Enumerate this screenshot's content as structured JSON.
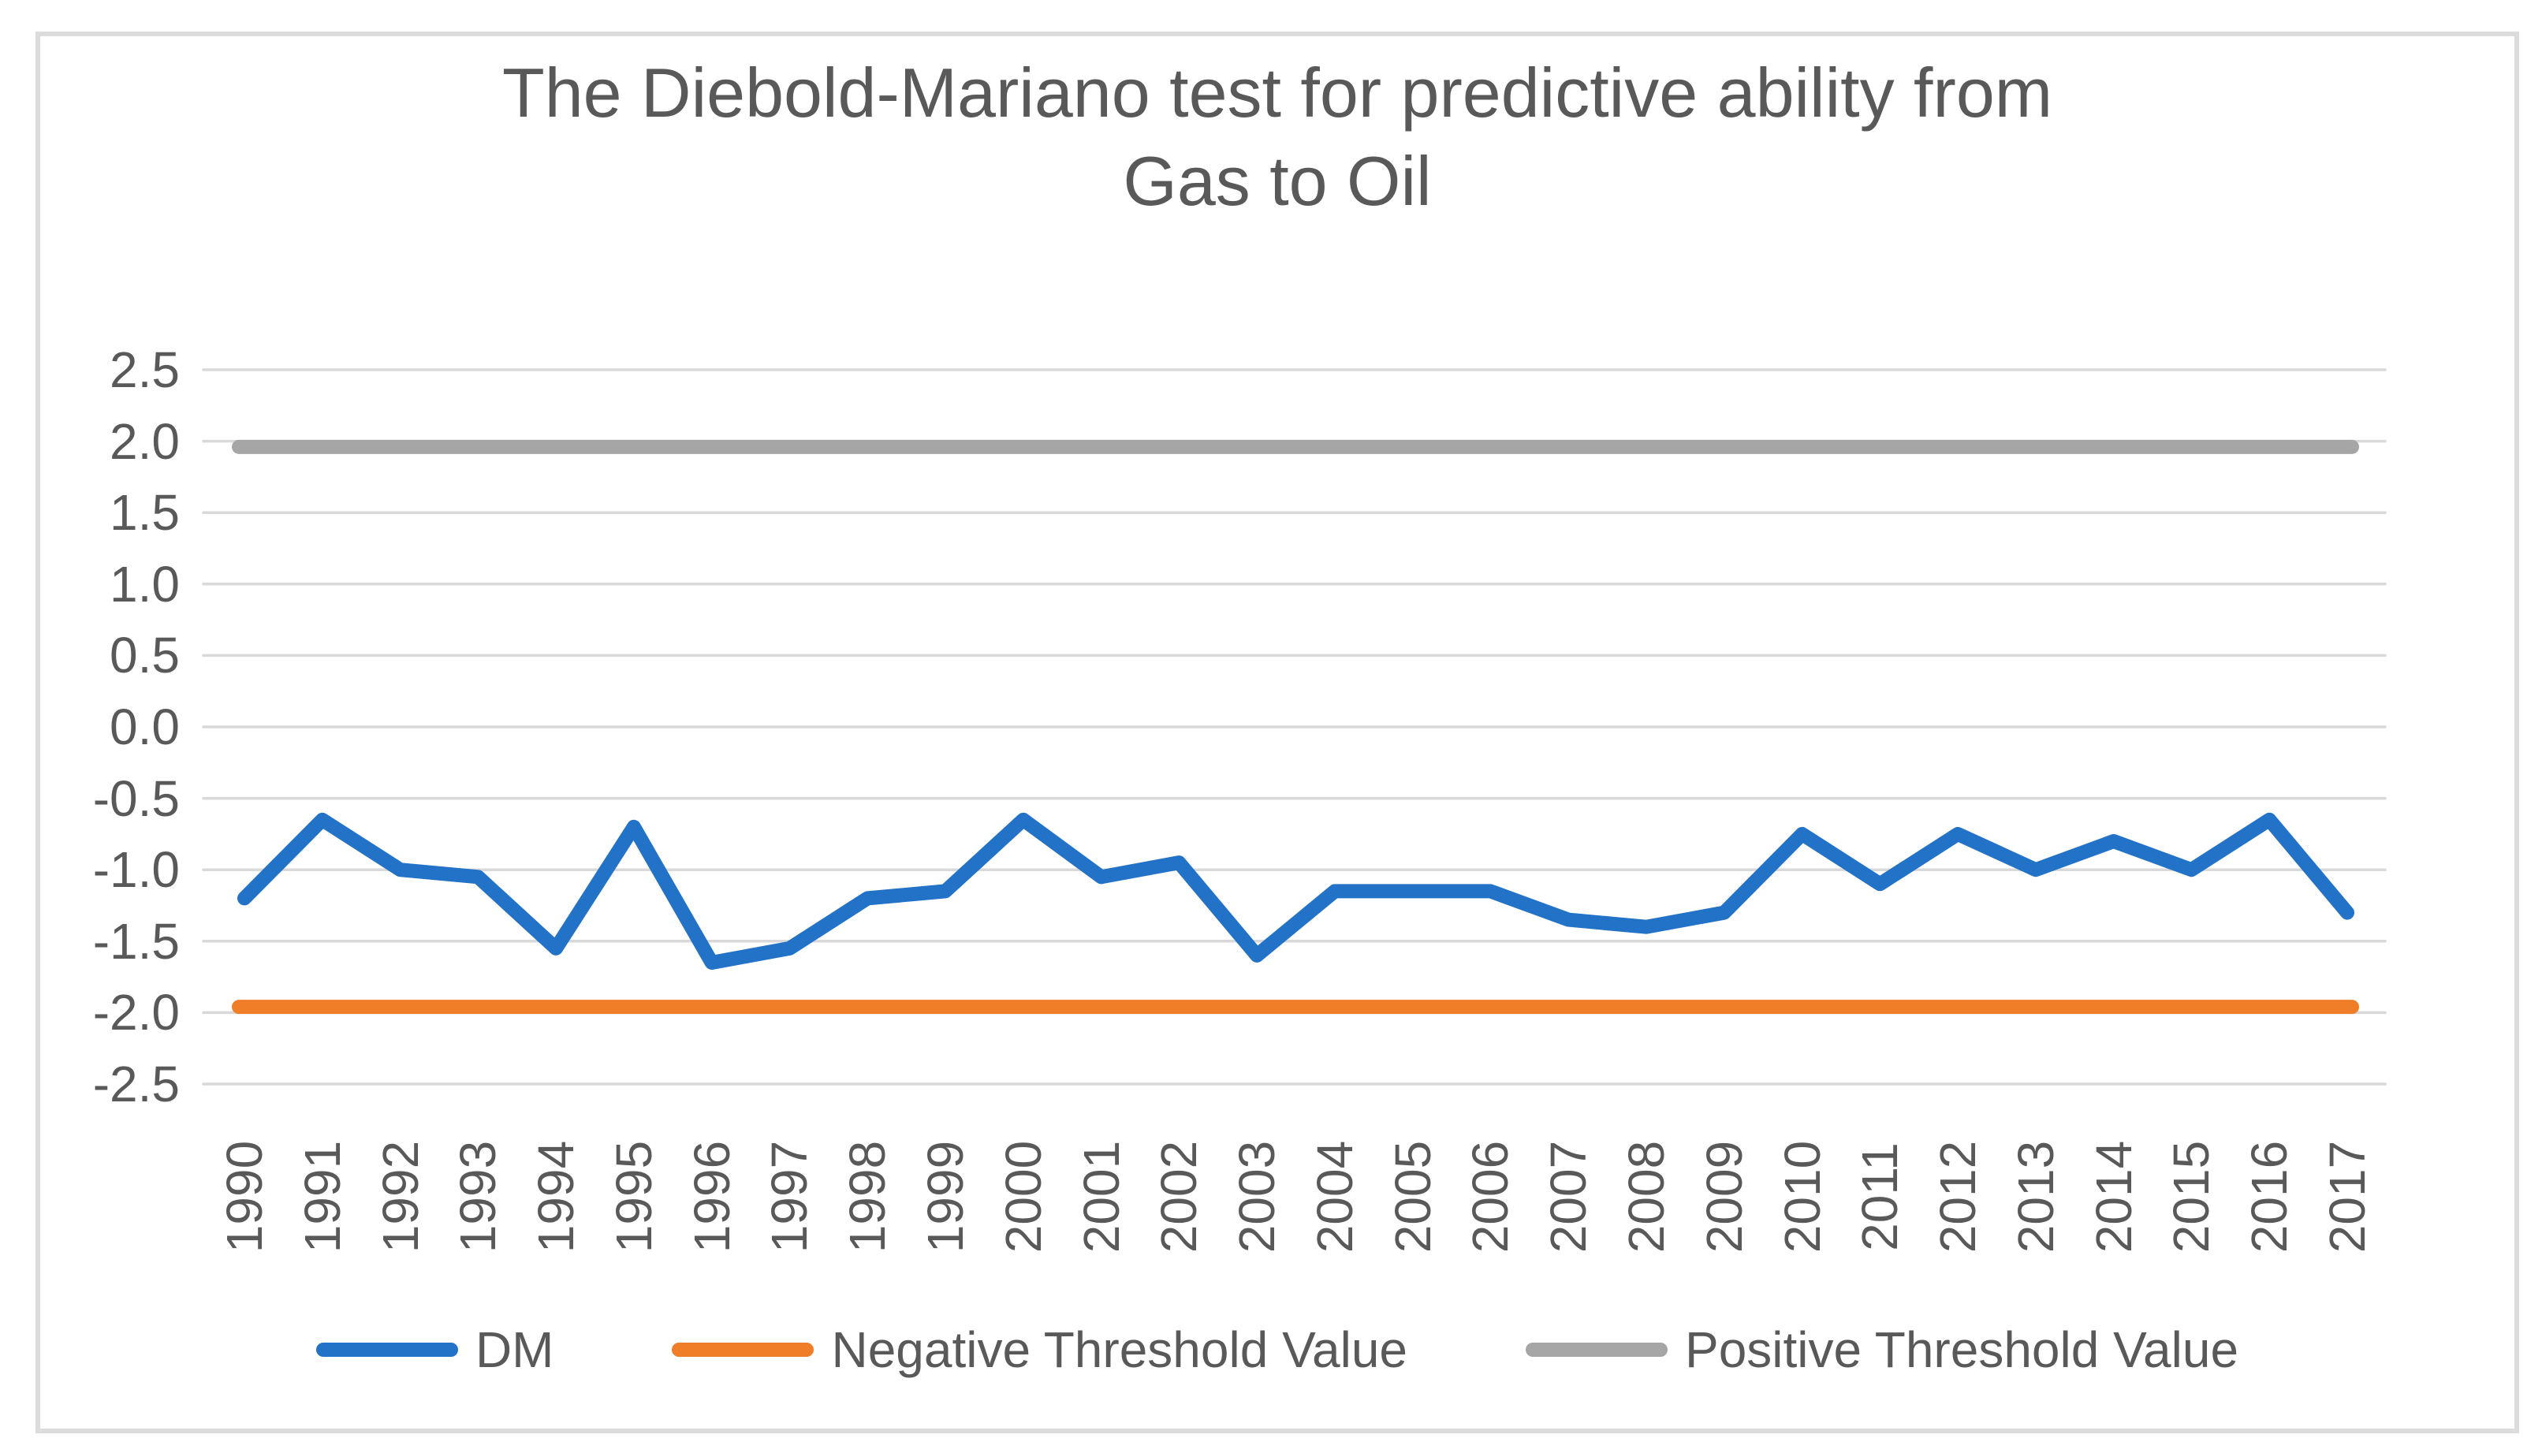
{
  "chart": {
    "title_lines": [
      "The Diebold-Mariano test for predictive ability from",
      "Gas to Oil"
    ],
    "legend": [
      {
        "label": "DM"
      },
      {
        "label": "Negative Threshold Value"
      },
      {
        "label": "Positive Threshold Value"
      }
    ],
    "colors": {
      "dm_blue": "#2272C8",
      "negative_threshold_orange": "#F07D28",
      "positive_threshold_gray": "#A6A6A6",
      "gridline": "#D9D9D9",
      "text": "#595959",
      "frame_border": "#DCDCDC"
    }
  },
  "chart_data": {
    "type": "line",
    "title": "The Diebold-Mariano test for predictive ability from Gas to Oil",
    "categories": [
      "1990",
      "1991",
      "1992",
      "1993",
      "1994",
      "1995",
      "1996",
      "1997",
      "1998",
      "1999",
      "2000",
      "2001",
      "2002",
      "2003",
      "2004",
      "2005",
      "2006",
      "2007",
      "2008",
      "2009",
      "2010",
      "2011",
      "2012",
      "2013",
      "2014",
      "2015",
      "2016",
      "2017"
    ],
    "series": [
      {
        "name": "DM",
        "color": "#2272C8",
        "values": [
          -1.2,
          -0.65,
          -1.0,
          -1.05,
          -1.55,
          -0.7,
          -1.65,
          -1.55,
          -1.2,
          -1.15,
          -0.65,
          -1.05,
          -0.95,
          -1.6,
          -1.15,
          -1.15,
          -1.15,
          -1.35,
          -1.4,
          -1.3,
          -0.75,
          -1.1,
          -0.75,
          -1.0,
          -0.8,
          -1.0,
          -0.65,
          -1.3
        ]
      },
      {
        "name": "Negative Threshold Value",
        "color": "#F07D28",
        "constant": -1.96
      },
      {
        "name": "Positive Threshold Value",
        "color": "#A6A6A6",
        "constant": 1.96
      }
    ],
    "y_ticks": [
      "2.5",
      "2.0",
      "1.5",
      "1.0",
      "0.5",
      "0.0",
      "-0.5",
      "-1.0",
      "-1.5",
      "-2.0",
      "-2.5"
    ],
    "ylim": [
      -2.5,
      2.5
    ],
    "grid": true,
    "legend_position": "bottom",
    "x_tick_rotation": -90
  }
}
